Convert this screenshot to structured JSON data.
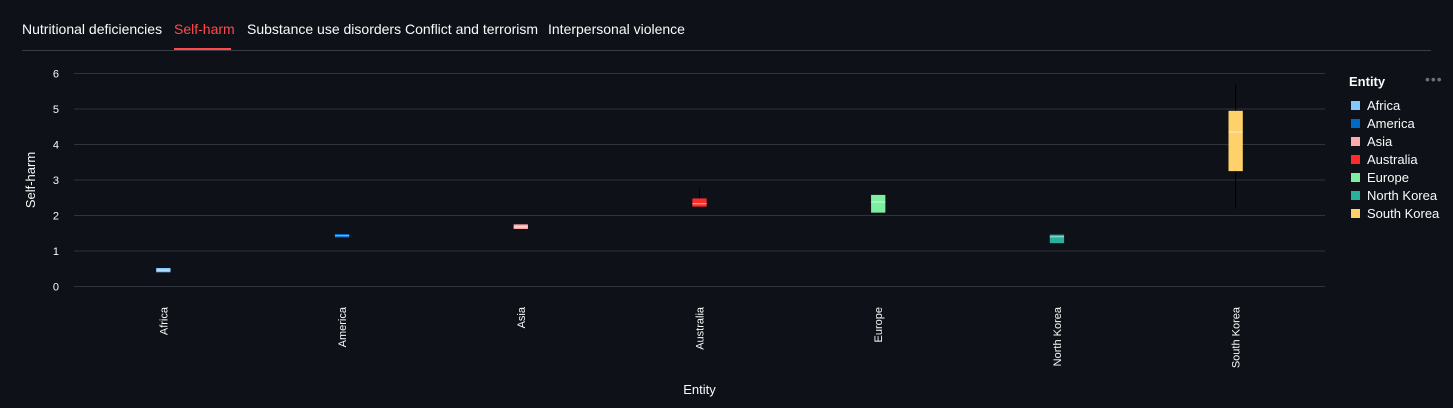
{
  "tabs": [
    {
      "label": "Nutritional deficiencies",
      "active": false
    },
    {
      "label": "Self-harm",
      "active": true
    },
    {
      "label": "Substance use disorders",
      "active": false
    },
    {
      "label": "Conflict and terrorism",
      "active": false
    },
    {
      "label": "Interpersonal violence",
      "active": false
    }
  ],
  "accent_color": "#ff4b4b",
  "legend": {
    "title": "Entity",
    "menu_icon": "more-horizontal-icon"
  },
  "chart_data": {
    "type": "box",
    "xlabel": "Entity",
    "ylabel": "Self-harm",
    "yticks": [
      0,
      1,
      2,
      3,
      4,
      5,
      6
    ],
    "ylim": [
      -0.1,
      6.1
    ],
    "grid": true,
    "legend_position": "right",
    "series": [
      {
        "name": "Africa",
        "color": "#83c9ff",
        "min": 0.4,
        "q1": 0.4,
        "median": 0.46,
        "q3": 0.52,
        "max": 0.52
      },
      {
        "name": "America",
        "color": "#0068c9",
        "min": 1.38,
        "q1": 1.38,
        "median": 1.43,
        "q3": 1.48,
        "max": 1.48
      },
      {
        "name": "Asia",
        "color": "#ffabab",
        "min": 1.62,
        "q1": 1.62,
        "median": 1.68,
        "q3": 1.75,
        "max": 1.75
      },
      {
        "name": "Australia",
        "color": "#ff2b2b",
        "min": 2.25,
        "q1": 2.25,
        "median": 2.33,
        "q3": 2.48,
        "max": 2.75
      },
      {
        "name": "Europe",
        "color": "#7defa1",
        "min": 2.08,
        "q1": 2.08,
        "median": 2.38,
        "q3": 2.58,
        "max": 2.6
      },
      {
        "name": "North Korea",
        "color": "#29b09d",
        "min": 1.22,
        "q1": 1.22,
        "median": 1.4,
        "q3": 1.46,
        "max": 1.46
      },
      {
        "name": "South Korea",
        "color": "#ffd16a",
        "min": 2.2,
        "q1": 3.25,
        "median": 4.35,
        "q3": 4.95,
        "max": 5.7
      }
    ]
  }
}
